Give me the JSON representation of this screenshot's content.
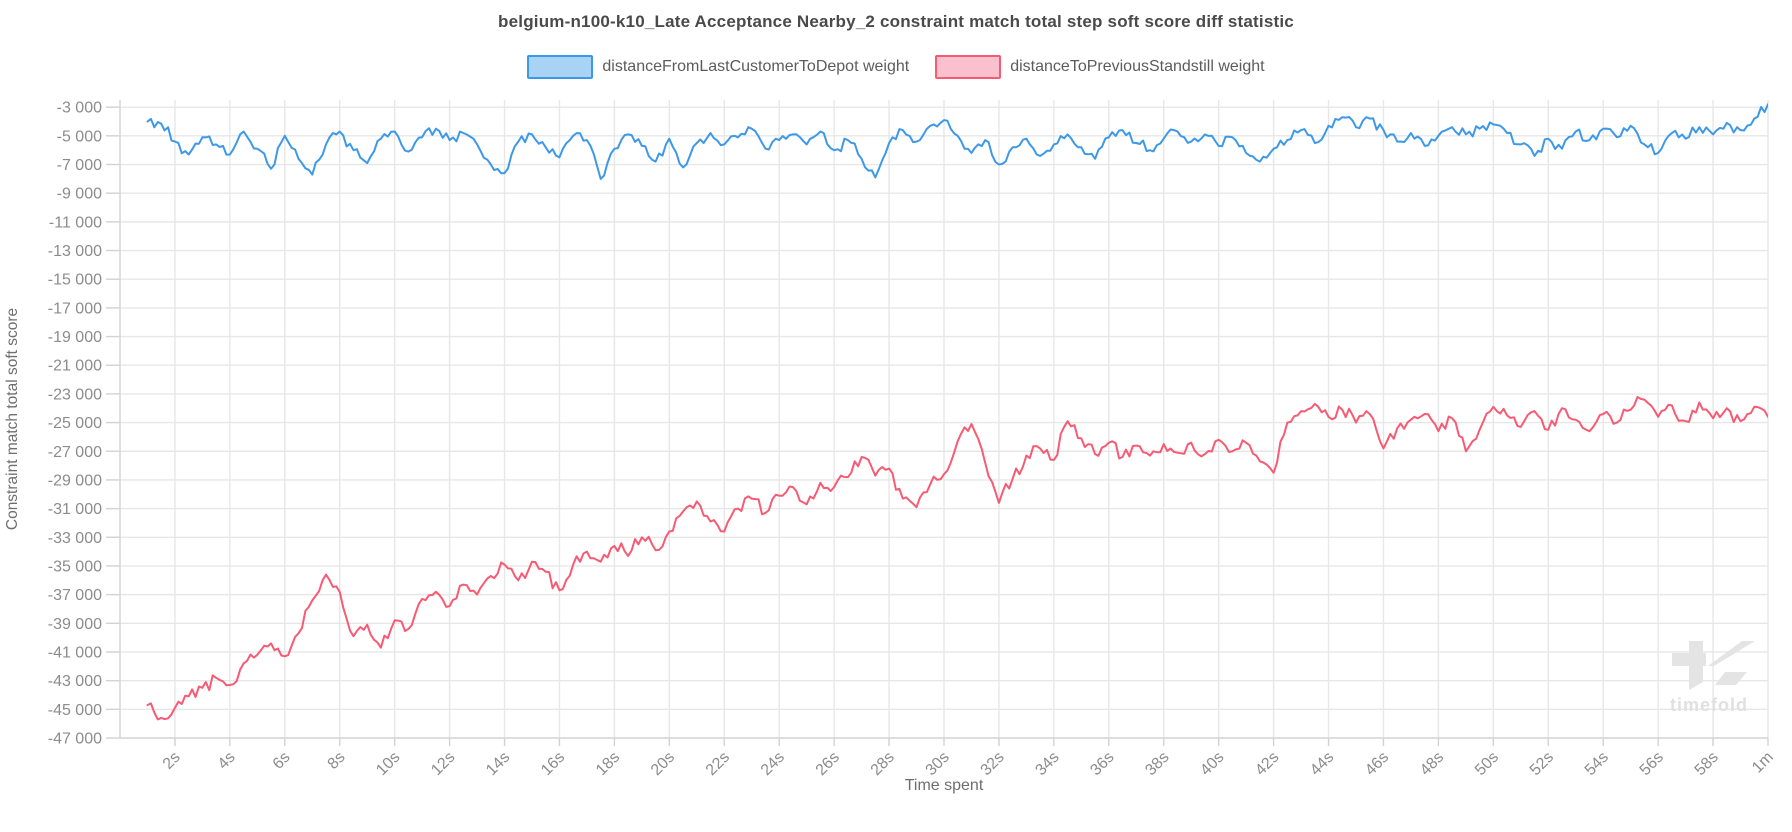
{
  "title": "belgium-n100-k10_Late Acceptance Nearby_2 constraint match total step soft score diff statistic",
  "watermark": {
    "text": "timefold"
  },
  "legend": [
    {
      "label": "distanceFromLastCustomerToDepot weight",
      "line_color": "#3d99e8",
      "fill_color": "#a9d3f5"
    },
    {
      "label": "distanceToPreviousStandstill weight",
      "line_color": "#f75b73",
      "fill_color": "#fbc0cd"
    }
  ],
  "chart_data": {
    "type": "line",
    "title": "belgium-n100-k10_Late Acceptance Nearby_2 constraint match total step soft score diff statistic",
    "xlabel": "Time spent",
    "ylabel": "Constraint match total soft score",
    "xlim": [
      0,
      60
    ],
    "ylim": [
      -47000,
      -2500
    ],
    "grid": true,
    "legend_position": "top",
    "x_unit": "seconds",
    "x_tick_values": [
      2,
      4,
      6,
      8,
      10,
      12,
      14,
      16,
      18,
      20,
      22,
      24,
      26,
      28,
      30,
      32,
      34,
      36,
      38,
      40,
      42,
      44,
      46,
      48,
      50,
      52,
      54,
      56,
      58,
      60
    ],
    "x_tick_labels": [
      "2s",
      "4s",
      "6s",
      "8s",
      "10s",
      "12s",
      "14s",
      "16s",
      "18s",
      "20s",
      "22s",
      "24s",
      "26s",
      "28s",
      "30s",
      "32s",
      "34s",
      "36s",
      "38s",
      "40s",
      "42s",
      "44s",
      "46s",
      "48s",
      "50s",
      "52s",
      "54s",
      "56s",
      "58s",
      "1m"
    ],
    "y_tick_values": [
      -3000,
      -5000,
      -7000,
      -9000,
      -11000,
      -13000,
      -15000,
      -17000,
      -19000,
      -21000,
      -23000,
      -25000,
      -27000,
      -29000,
      -31000,
      -33000,
      -35000,
      -37000,
      -39000,
      -41000,
      -43000,
      -45000,
      -47000
    ],
    "y_tick_labels": [
      "-3 000",
      "-5 000",
      "-7 000",
      "-9 000",
      "-11 000",
      "-13 000",
      "-15 000",
      "-17 000",
      "-19 000",
      "-21 000",
      "-23 000",
      "-25 000",
      "-27 000",
      "-29 000",
      "-31 000",
      "-33 000",
      "-35 000",
      "-37 000",
      "-39 000",
      "-41 000",
      "-43 000",
      "-45 000",
      "-47 000"
    ],
    "x_start_s": 1.0,
    "x_step_s": 0.5,
    "series": [
      {
        "name": "distanceFromLastCustomerToDepot weight",
        "color": "#3d99e8",
        "values": [
          -4000,
          -4150,
          -5400,
          -6300,
          -5100,
          -5600,
          -6300,
          -4700,
          -5900,
          -7300,
          -5000,
          -6600,
          -7700,
          -5600,
          -4700,
          -6000,
          -6900,
          -5200,
          -4700,
          -6100,
          -5100,
          -4500,
          -5300,
          -4800,
          -5600,
          -7000,
          -7600,
          -5400,
          -4900,
          -5800,
          -6500,
          -5000,
          -5300,
          -8000,
          -5900,
          -4900,
          -5700,
          -6800,
          -5200,
          -7200,
          -5500,
          -4800,
          -5600,
          -5100,
          -4500,
          -5900,
          -5300,
          -4900,
          -5600,
          -4700,
          -6000,
          -5300,
          -6600,
          -7900,
          -5500,
          -4600,
          -5400,
          -4300,
          -3900,
          -5000,
          -6200,
          -5300,
          -7000,
          -5800,
          -5200,
          -6400,
          -5600,
          -4900,
          -5800,
          -6600,
          -5100,
          -4600,
          -5500,
          -6000,
          -5200,
          -4700,
          -5400,
          -4900,
          -5700,
          -5100,
          -6200,
          -6800,
          -5900,
          -5300,
          -4600,
          -5500,
          -4300,
          -3700,
          -4400,
          -3800,
          -4600,
          -5400,
          -4800,
          -5700,
          -5000,
          -4400,
          -4900,
          -4500,
          -4200,
          -4800,
          -5600,
          -6400,
          -5200,
          -5900,
          -4700,
          -5300,
          -4500,
          -5100,
          -4300,
          -5600,
          -6200,
          -4800,
          -5200,
          -4400,
          -4900,
          -4100,
          -4600,
          -3800,
          -2800
        ]
      },
      {
        "name": "distanceToPreviousStandstill weight",
        "color": "#f75b73",
        "values": [
          -44700,
          -45600,
          -44900,
          -44100,
          -43500,
          -42800,
          -43300,
          -41800,
          -41200,
          -40400,
          -41300,
          -39700,
          -37400,
          -35600,
          -36800,
          -39900,
          -39100,
          -40700,
          -38800,
          -39400,
          -37300,
          -36800,
          -37800,
          -36300,
          -37000,
          -35700,
          -34900,
          -36000,
          -34700,
          -35400,
          -36700,
          -34900,
          -34000,
          -34700,
          -33600,
          -34300,
          -33000,
          -33900,
          -32600,
          -31200,
          -30500,
          -31900,
          -32600,
          -31000,
          -30300,
          -31300,
          -30100,
          -29500,
          -30700,
          -29200,
          -29500,
          -28800,
          -27400,
          -28700,
          -28200,
          -30300,
          -30900,
          -29300,
          -28600,
          -26300,
          -25100,
          -27800,
          -30600,
          -28900,
          -27300,
          -26800,
          -27600,
          -24900,
          -26100,
          -27200,
          -26400,
          -27400,
          -26600,
          -27300,
          -26500,
          -27100,
          -26400,
          -27200,
          -26200,
          -27000,
          -26400,
          -27700,
          -28500,
          -25000,
          -24200,
          -23700,
          -24600,
          -24100,
          -25000,
          -24400,
          -26800,
          -25400,
          -24800,
          -24400,
          -25600,
          -24700,
          -27000,
          -25500,
          -23900,
          -24500,
          -25300,
          -24200,
          -25500,
          -24000,
          -24800,
          -25600,
          -24400,
          -25000,
          -24100,
          -23400,
          -24600,
          -23800,
          -24900,
          -23600,
          -24700,
          -24000,
          -24900,
          -23900,
          -24600
        ]
      }
    ],
    "render": {
      "subdivisions": 4,
      "jitter_amplitude": [
        430,
        540
      ],
      "jitter_seeds": [
        3,
        7
      ]
    }
  }
}
